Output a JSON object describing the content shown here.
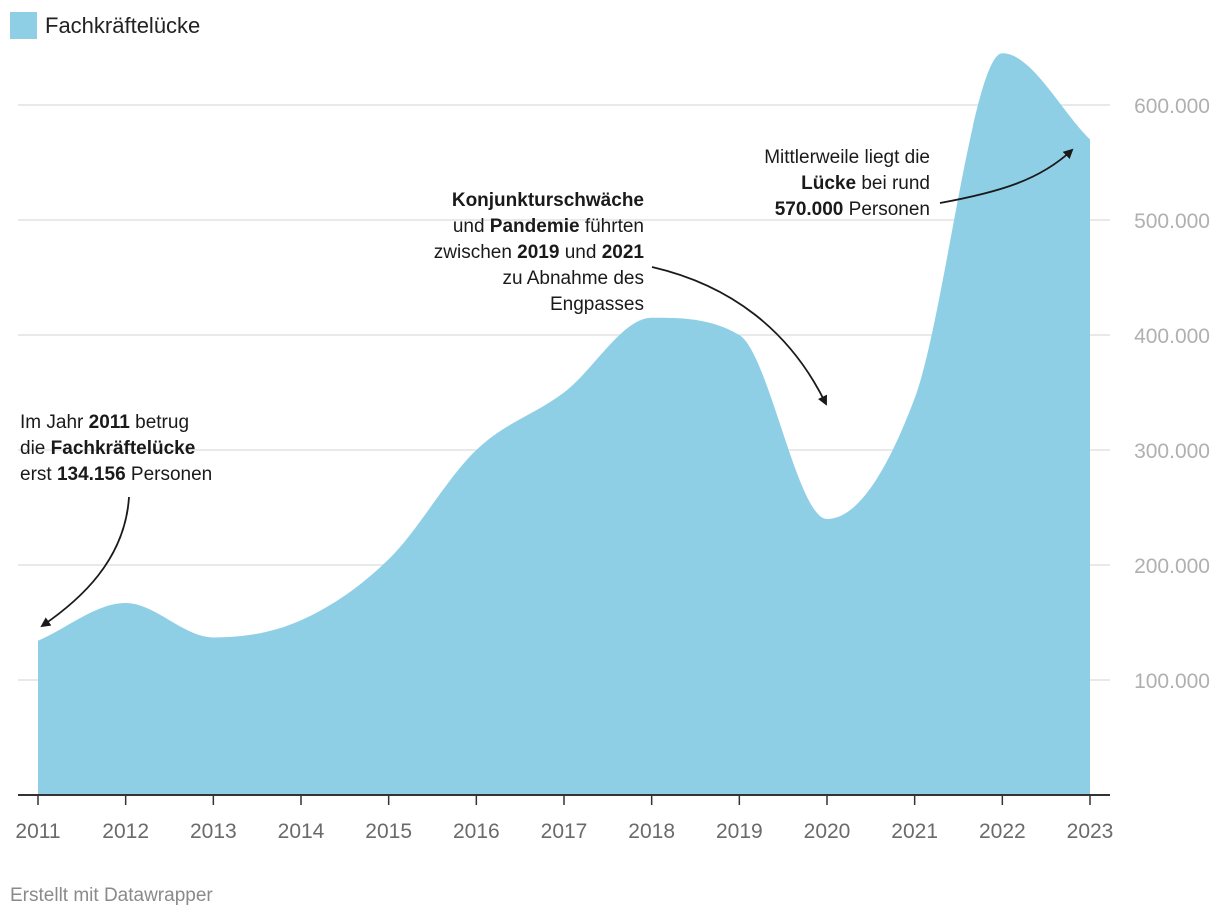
{
  "chart_data": {
    "type": "area",
    "series": [
      {
        "name": "Fachkräftelücke",
        "x": [
          2011,
          2012,
          2013,
          2014,
          2015,
          2016,
          2017,
          2018,
          2019,
          2020,
          2021,
          2022,
          2023
        ],
        "values": [
          134156,
          167000,
          137000,
          152000,
          205000,
          300000,
          350000,
          415000,
          400000,
          240000,
          345000,
          645000,
          570000
        ]
      }
    ],
    "categories": [
      "2011",
      "2012",
      "2013",
      "2014",
      "2015",
      "2016",
      "2017",
      "2018",
      "2019",
      "2020",
      "2021",
      "2022",
      "2023"
    ],
    "y_ticks": [
      100000,
      200000,
      300000,
      400000,
      500000,
      600000
    ],
    "y_tick_labels": [
      "100.000",
      "200.000",
      "300.000",
      "400.000",
      "500.000",
      "600.000"
    ],
    "ylim": [
      0,
      650000
    ],
    "xlabel": "",
    "ylabel": "",
    "legend": "top-left",
    "color": "#8fcfe6"
  },
  "legend": {
    "label": "Fachkräftelücke",
    "color": "#8fcfe6"
  },
  "annotations": {
    "a2011": {
      "l1a": "Im Jahr ",
      "l1b": "2011",
      "l1c": " betrug",
      "l2a": "die ",
      "l2b": "Fachkräftelücke",
      "l3a": "erst ",
      "l3b": "134.156",
      "l3c": " Personen"
    },
    "a2019": {
      "l1a": "Konjunkturschwäche",
      "l2a": "und ",
      "l2b": "Pandemie",
      "l2c": " führten",
      "l3a": "zwischen ",
      "l3b": "2019",
      "l3c": " und ",
      "l3d": "2021",
      "l4a": "zu Abnahme des",
      "l5a": "Engpasses"
    },
    "a2023": {
      "l1a": "Mittlerweile liegt die",
      "l2a": "Lücke",
      "l2b": " bei rund",
      "l3a": "570.000",
      "l3b": " Personen"
    }
  },
  "footer": "Erstellt mit Datawrapper"
}
